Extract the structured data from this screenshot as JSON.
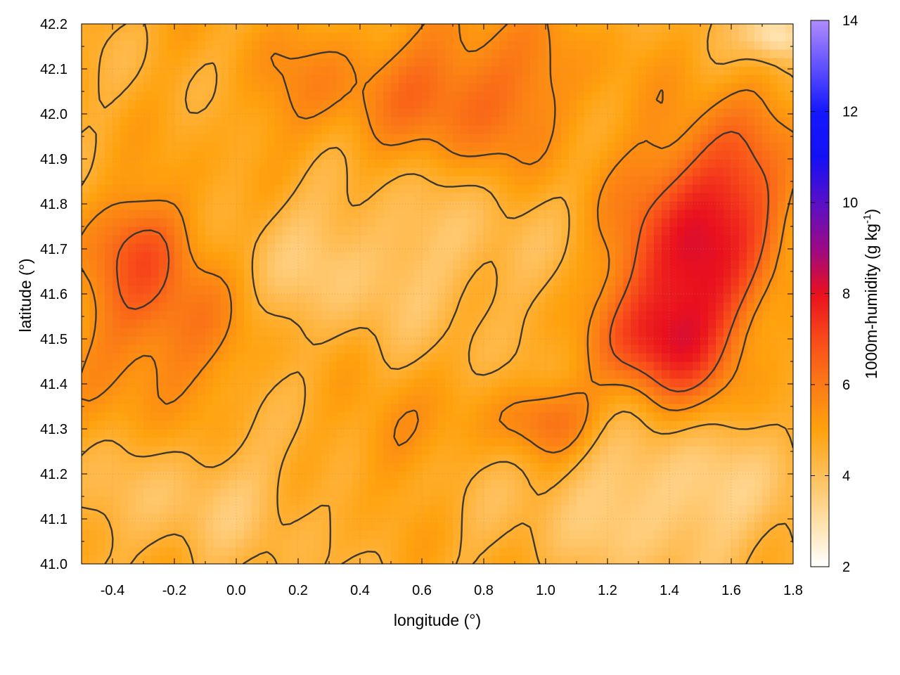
{
  "chart_data": {
    "type": "heatmap",
    "title": "",
    "xlabel": "longitude (°)",
    "ylabel": "latitude (°)",
    "colorbar_label": "1000m-humidity (g kg",
    "colorbar_label_sup": "-1",
    "colorbar_label_end": ")",
    "xlim": [
      -0.5,
      1.8
    ],
    "ylim": [
      41.0,
      42.2
    ],
    "x_ticks": [
      "-0.4",
      "-0.2",
      "0.0",
      "0.2",
      "0.4",
      "0.6",
      "0.8",
      "1.0",
      "1.2",
      "1.4",
      "1.6",
      "1.8"
    ],
    "x_tick_values": [
      -0.4,
      -0.2,
      0.0,
      0.2,
      0.4,
      0.6,
      0.8,
      1.0,
      1.2,
      1.4,
      1.6,
      1.8
    ],
    "y_ticks": [
      "41.0",
      "41.1",
      "41.2",
      "41.3",
      "41.4",
      "41.5",
      "41.6",
      "41.7",
      "41.8",
      "41.9",
      "42.0",
      "42.1",
      "42.2"
    ],
    "y_tick_values": [
      41.0,
      41.1,
      41.2,
      41.3,
      41.4,
      41.5,
      41.6,
      41.7,
      41.8,
      41.9,
      42.0,
      42.1,
      42.2
    ],
    "colorbar_range": [
      2,
      14
    ],
    "colorbar_ticks": [
      "2",
      "4",
      "6",
      "8",
      "10",
      "12",
      "14"
    ],
    "colorbar_tick_values": [
      2,
      4,
      6,
      8,
      10,
      12,
      14
    ],
    "colormap": [
      {
        "value": 2,
        "color": "#ffffff"
      },
      {
        "value": 3,
        "color": "#ffe0a8"
      },
      {
        "value": 4,
        "color": "#ffbf5a"
      },
      {
        "value": 5,
        "color": "#ffa20e"
      },
      {
        "value": 6,
        "color": "#fb7a16"
      },
      {
        "value": 7,
        "color": "#f84a1a"
      },
      {
        "value": 8,
        "color": "#e9101e"
      },
      {
        "value": 9,
        "color": "#9a0a86"
      },
      {
        "value": 10,
        "color": "#5810c8"
      },
      {
        "value": 11,
        "color": "#1410f6"
      },
      {
        "value": 12,
        "color": "#1418ff"
      },
      {
        "value": 14,
        "color": "#b08cff"
      }
    ],
    "grid": true,
    "contour_levels": [
      4.5,
      5.5,
      6.5
    ],
    "field_features": [
      {
        "lon": 1.45,
        "lat": 41.62,
        "amp": 3.2,
        "sx": 0.16,
        "sy": 0.16
      },
      {
        "lon": 1.6,
        "lat": 41.85,
        "amp": 2.0,
        "sx": 0.15,
        "sy": 0.12
      },
      {
        "lon": 1.35,
        "lat": 41.48,
        "amp": 1.4,
        "sx": 0.12,
        "sy": 0.08
      },
      {
        "lon": -0.25,
        "lat": 41.55,
        "amp": 1.6,
        "sx": 0.18,
        "sy": 0.15
      },
      {
        "lon": -0.3,
        "lat": 41.72,
        "amp": 1.2,
        "sx": 0.12,
        "sy": 0.08
      },
      {
        "lon": 0.75,
        "lat": 42.05,
        "amp": 1.7,
        "sx": 0.25,
        "sy": 0.12
      },
      {
        "lon": 1.0,
        "lat": 41.32,
        "amp": 1.6,
        "sx": 0.12,
        "sy": 0.06
      },
      {
        "lon": 0.5,
        "lat": 41.28,
        "amp": 0.9,
        "sx": 0.1,
        "sy": 0.08
      },
      {
        "lon": 0.2,
        "lat": 42.05,
        "amp": 0.7,
        "sx": 0.15,
        "sy": 0.1
      },
      {
        "lon": 0.3,
        "lat": 41.68,
        "amp": -0.9,
        "sx": 0.25,
        "sy": 0.12
      },
      {
        "lon": 1.4,
        "lat": 41.15,
        "amp": -1.4,
        "sx": 0.3,
        "sy": 0.12
      },
      {
        "lon": -0.1,
        "lat": 41.15,
        "amp": -0.8,
        "sx": 0.25,
        "sy": 0.1
      },
      {
        "lon": 0.75,
        "lat": 41.7,
        "amp": -0.6,
        "sx": 0.2,
        "sy": 0.12
      },
      {
        "lon": 1.75,
        "lat": 42.18,
        "amp": -2.2,
        "sx": 0.07,
        "sy": 0.04
      }
    ],
    "field_base": 4.7
  }
}
